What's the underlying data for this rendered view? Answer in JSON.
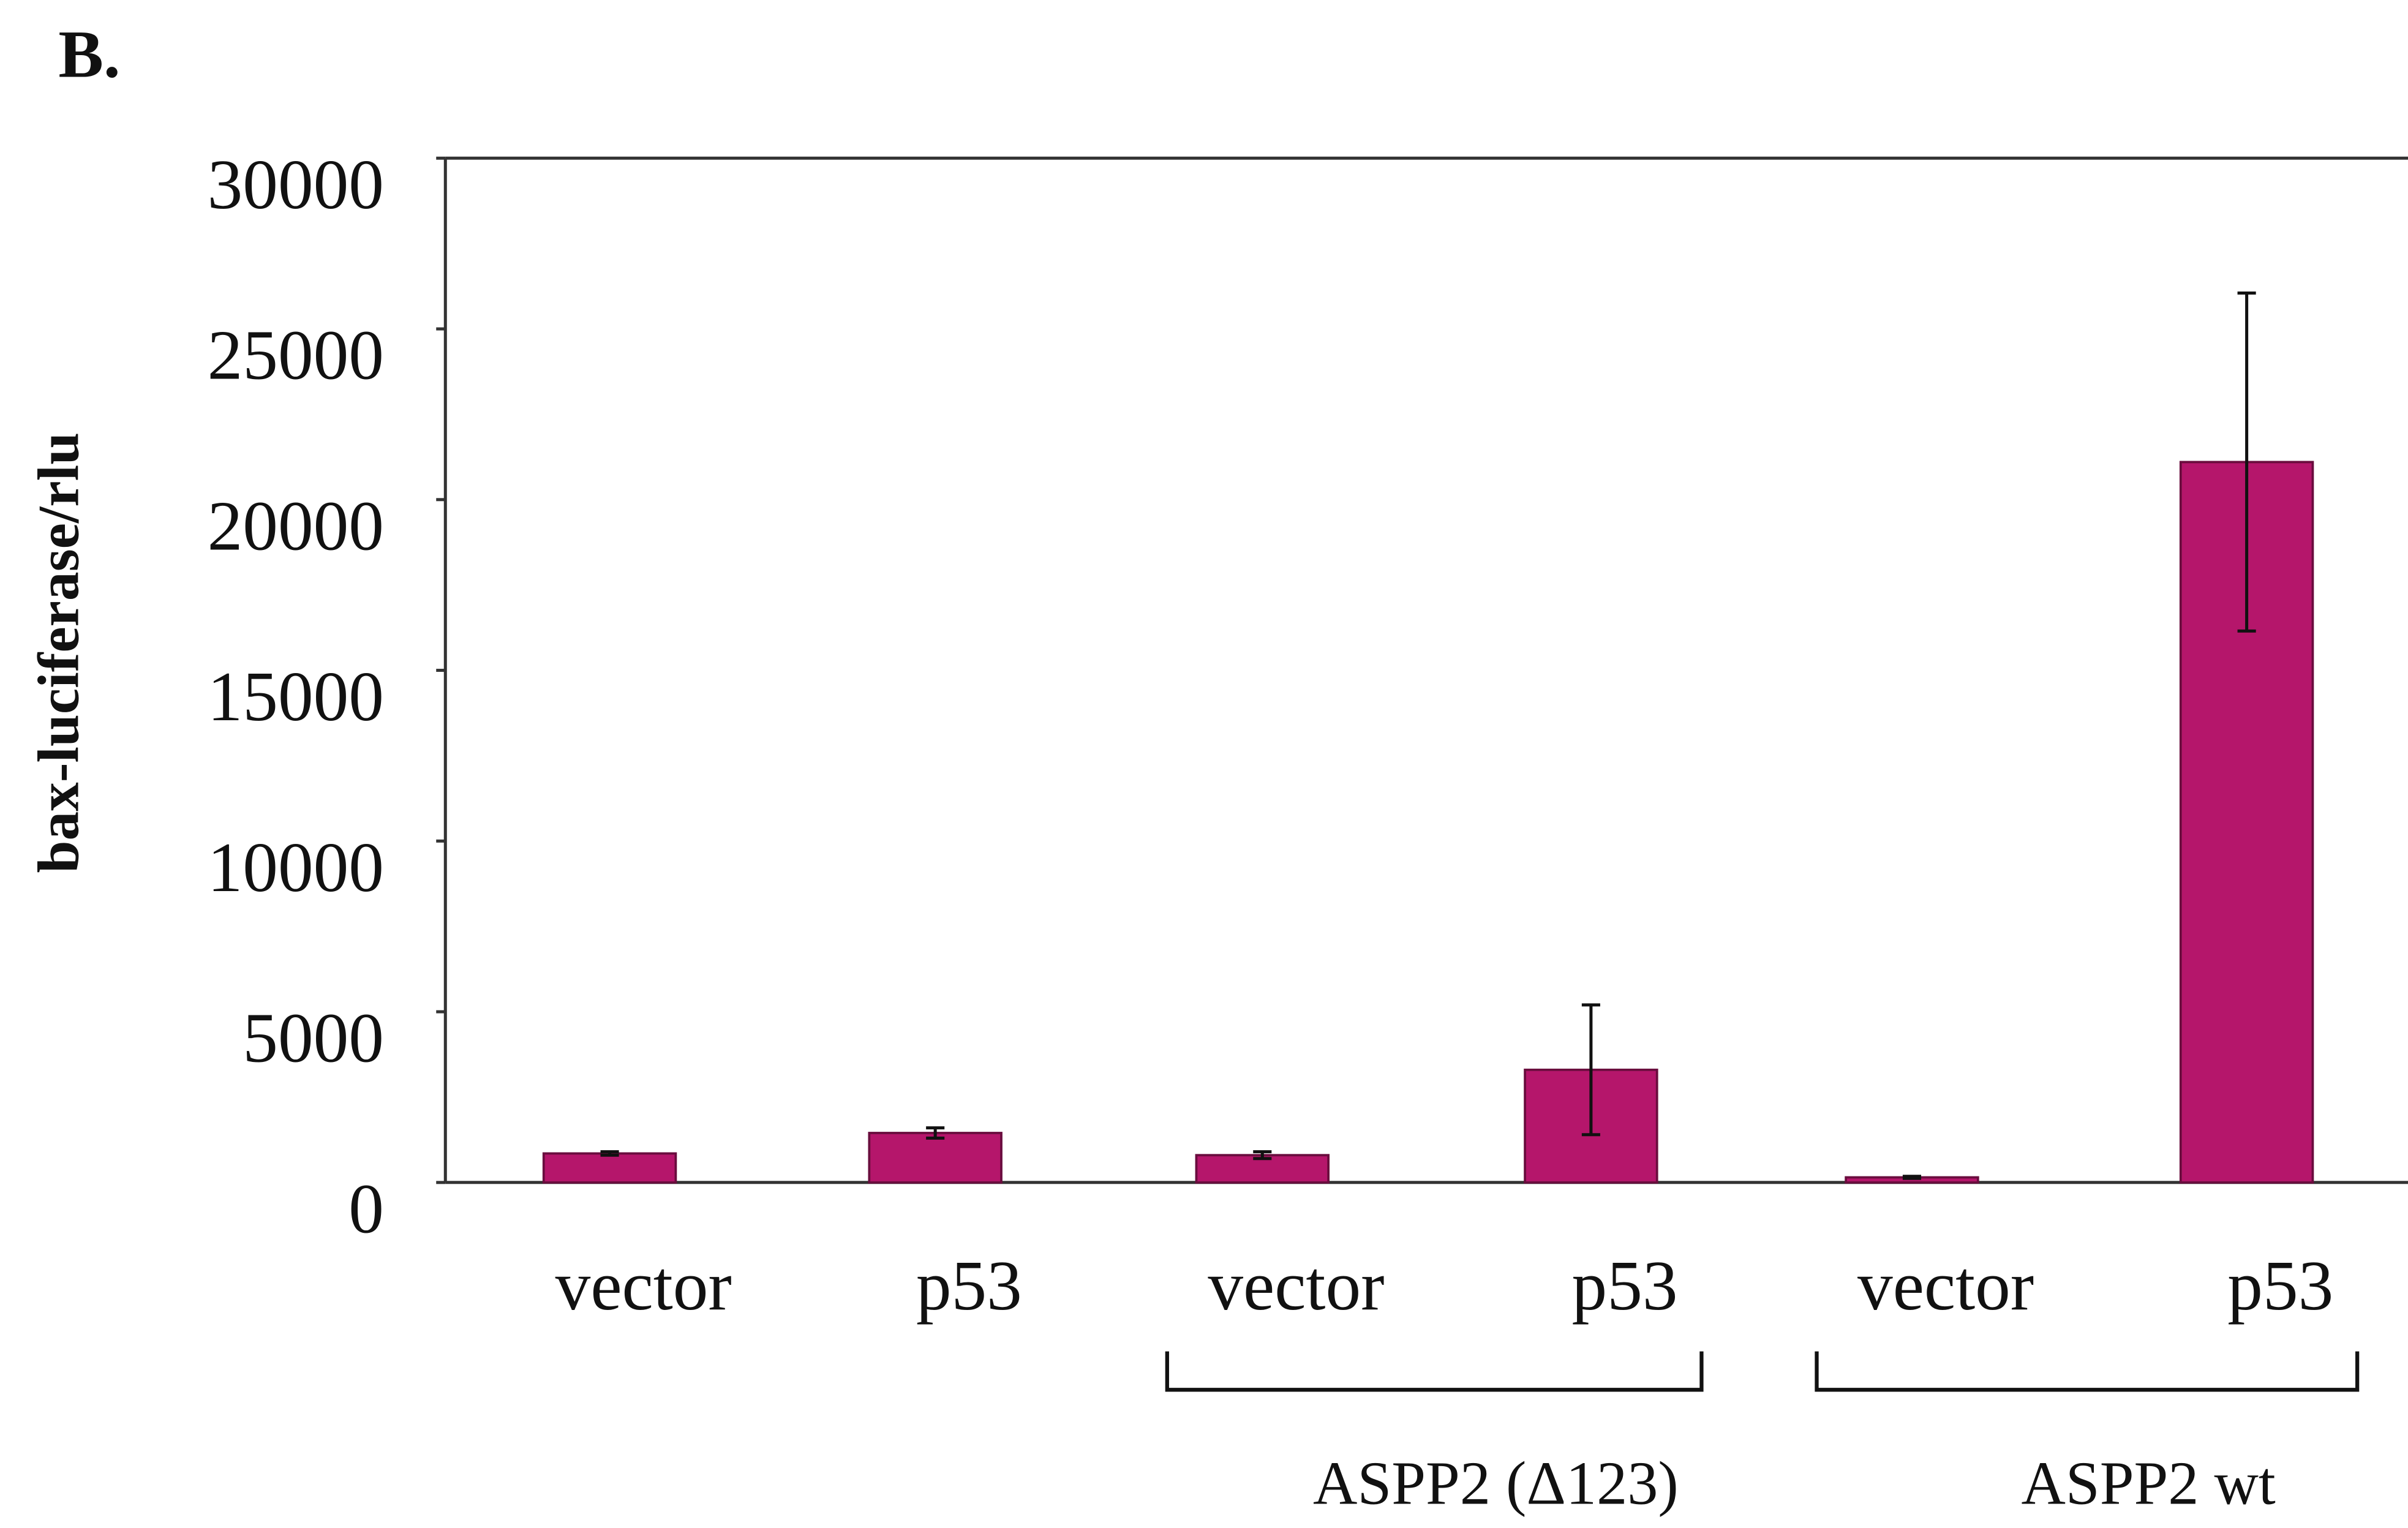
{
  "chart_data": {
    "type": "bar",
    "panel_label": "B.",
    "y_label": "bax-luciferase/rlu",
    "categories": [
      "vector",
      "p53",
      "vector",
      "p53",
      "vector",
      "p53"
    ],
    "groups": [
      "ASPP2 (Δ123)",
      "ASPP2 wt"
    ],
    "series": [
      {
        "color": "#b5166b",
        "values": [
          850,
          1450,
          800,
          3300,
          150,
          21100
        ],
        "errors": [
          50,
          150,
          100,
          1900,
          30,
          4950
        ]
      }
    ],
    "ylim": [
      0,
      30000
    ],
    "yticks": [
      0,
      5000,
      10000,
      15000,
      20000,
      25000,
      30000
    ]
  }
}
